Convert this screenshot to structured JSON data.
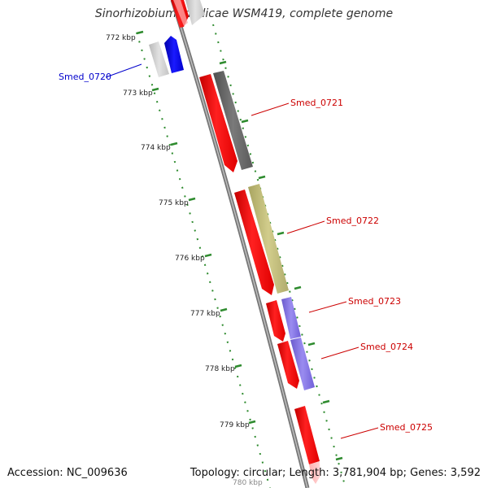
{
  "title": "Sinorhizobium medicae WSM419, complete genome",
  "footer": {
    "accession": "Accession: NC_009636",
    "topology": "Topology: circular; Length: 3,781,904 bp; Genes: 3,592"
  },
  "colors": {
    "backbone": "#8a8a8a",
    "tick_dots": "#2e8b2e",
    "forward_cds": "#ff0000",
    "reverse_cds": "#0000ee",
    "label_forward": "#cc0000",
    "label_reverse": "#0000cc"
  },
  "scale_ticks": [
    {
      "label": "772 kbp"
    },
    {
      "label": "773 kbp"
    },
    {
      "label": "774 kbp"
    },
    {
      "label": "775 kbp"
    },
    {
      "label": "776 kbp"
    },
    {
      "label": "777 kbp"
    },
    {
      "label": "778 kbp"
    },
    {
      "label": "779 kbp"
    },
    {
      "label": "780 kbp"
    }
  ],
  "genes": [
    {
      "name": "Smed_0720",
      "strand": "reverse",
      "cog_color": "#c8c8c8"
    },
    {
      "name": "Smed_0721",
      "strand": "forward",
      "cog_color": "#666666"
    },
    {
      "name": "Smed_0722",
      "strand": "forward",
      "cog_color": "#bdb76b"
    },
    {
      "name": "Smed_0723",
      "strand": "forward",
      "cog_color": "#7b68ee"
    },
    {
      "name": "Smed_0724",
      "strand": "forward",
      "cog_color": "#7b68ee"
    },
    {
      "name": "Smed_0725",
      "strand": "forward",
      "cog_color": "#ffc0cb"
    }
  ]
}
